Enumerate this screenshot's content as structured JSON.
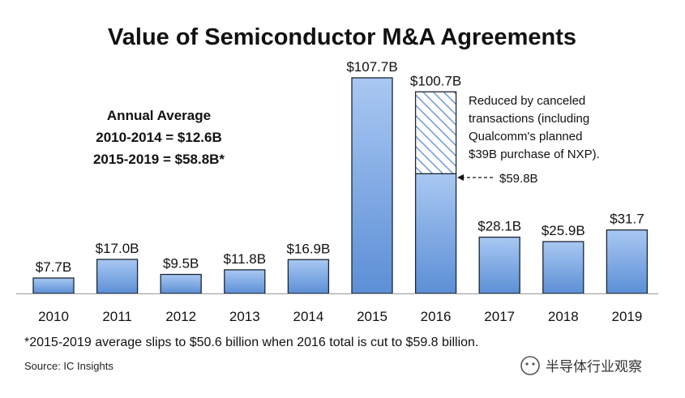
{
  "chart_data": {
    "type": "bar",
    "title": "Value of Semiconductor M&A Agreements",
    "categories": [
      "2010",
      "2011",
      "2012",
      "2013",
      "2014",
      "2015",
      "2016",
      "2017",
      "2018",
      "2019"
    ],
    "values": [
      7.7,
      17.0,
      9.5,
      11.8,
      16.9,
      107.7,
      100.7,
      28.1,
      25.9,
      31.7
    ],
    "value_labels": [
      "$7.7B",
      "$17.0B",
      "$9.5B",
      "$11.8B",
      "$16.9B",
      "$107.7B",
      "$100.7B",
      "$28.1B",
      "$25.9B",
      "$31.7"
    ],
    "unit": "billion USD",
    "ylim": [
      0,
      110
    ],
    "grid": false,
    "stacked_2016": {
      "solid_value": 59.8,
      "canceled_value": 40.9,
      "solid_label": "$59.8B",
      "canceled_pattern": "diagonal-hatch"
    },
    "annotation_2016": [
      "Reduced by canceled",
      "transactions (including",
      "Qualcomm's planned",
      "$39B purchase of NXP)."
    ],
    "annual_average": {
      "heading": "Annual Average",
      "line1": "2010-2014 = $12.6B",
      "line2": "2015-2019 = $58.8B*"
    },
    "footnote": "*2015-2019 average slips to $50.6 billion when 2016 total is cut to $59.8 billion.",
    "source": "Source: IC Insights",
    "colors": {
      "bar_top": "#a9c8f2",
      "bar_bottom": "#5c8fd6",
      "bar_edge": "#1b2733",
      "hatch": "#6f9ad8"
    }
  },
  "watermark": {
    "text": "半导体行业观察",
    "icon": "wechat-logo-icon"
  }
}
